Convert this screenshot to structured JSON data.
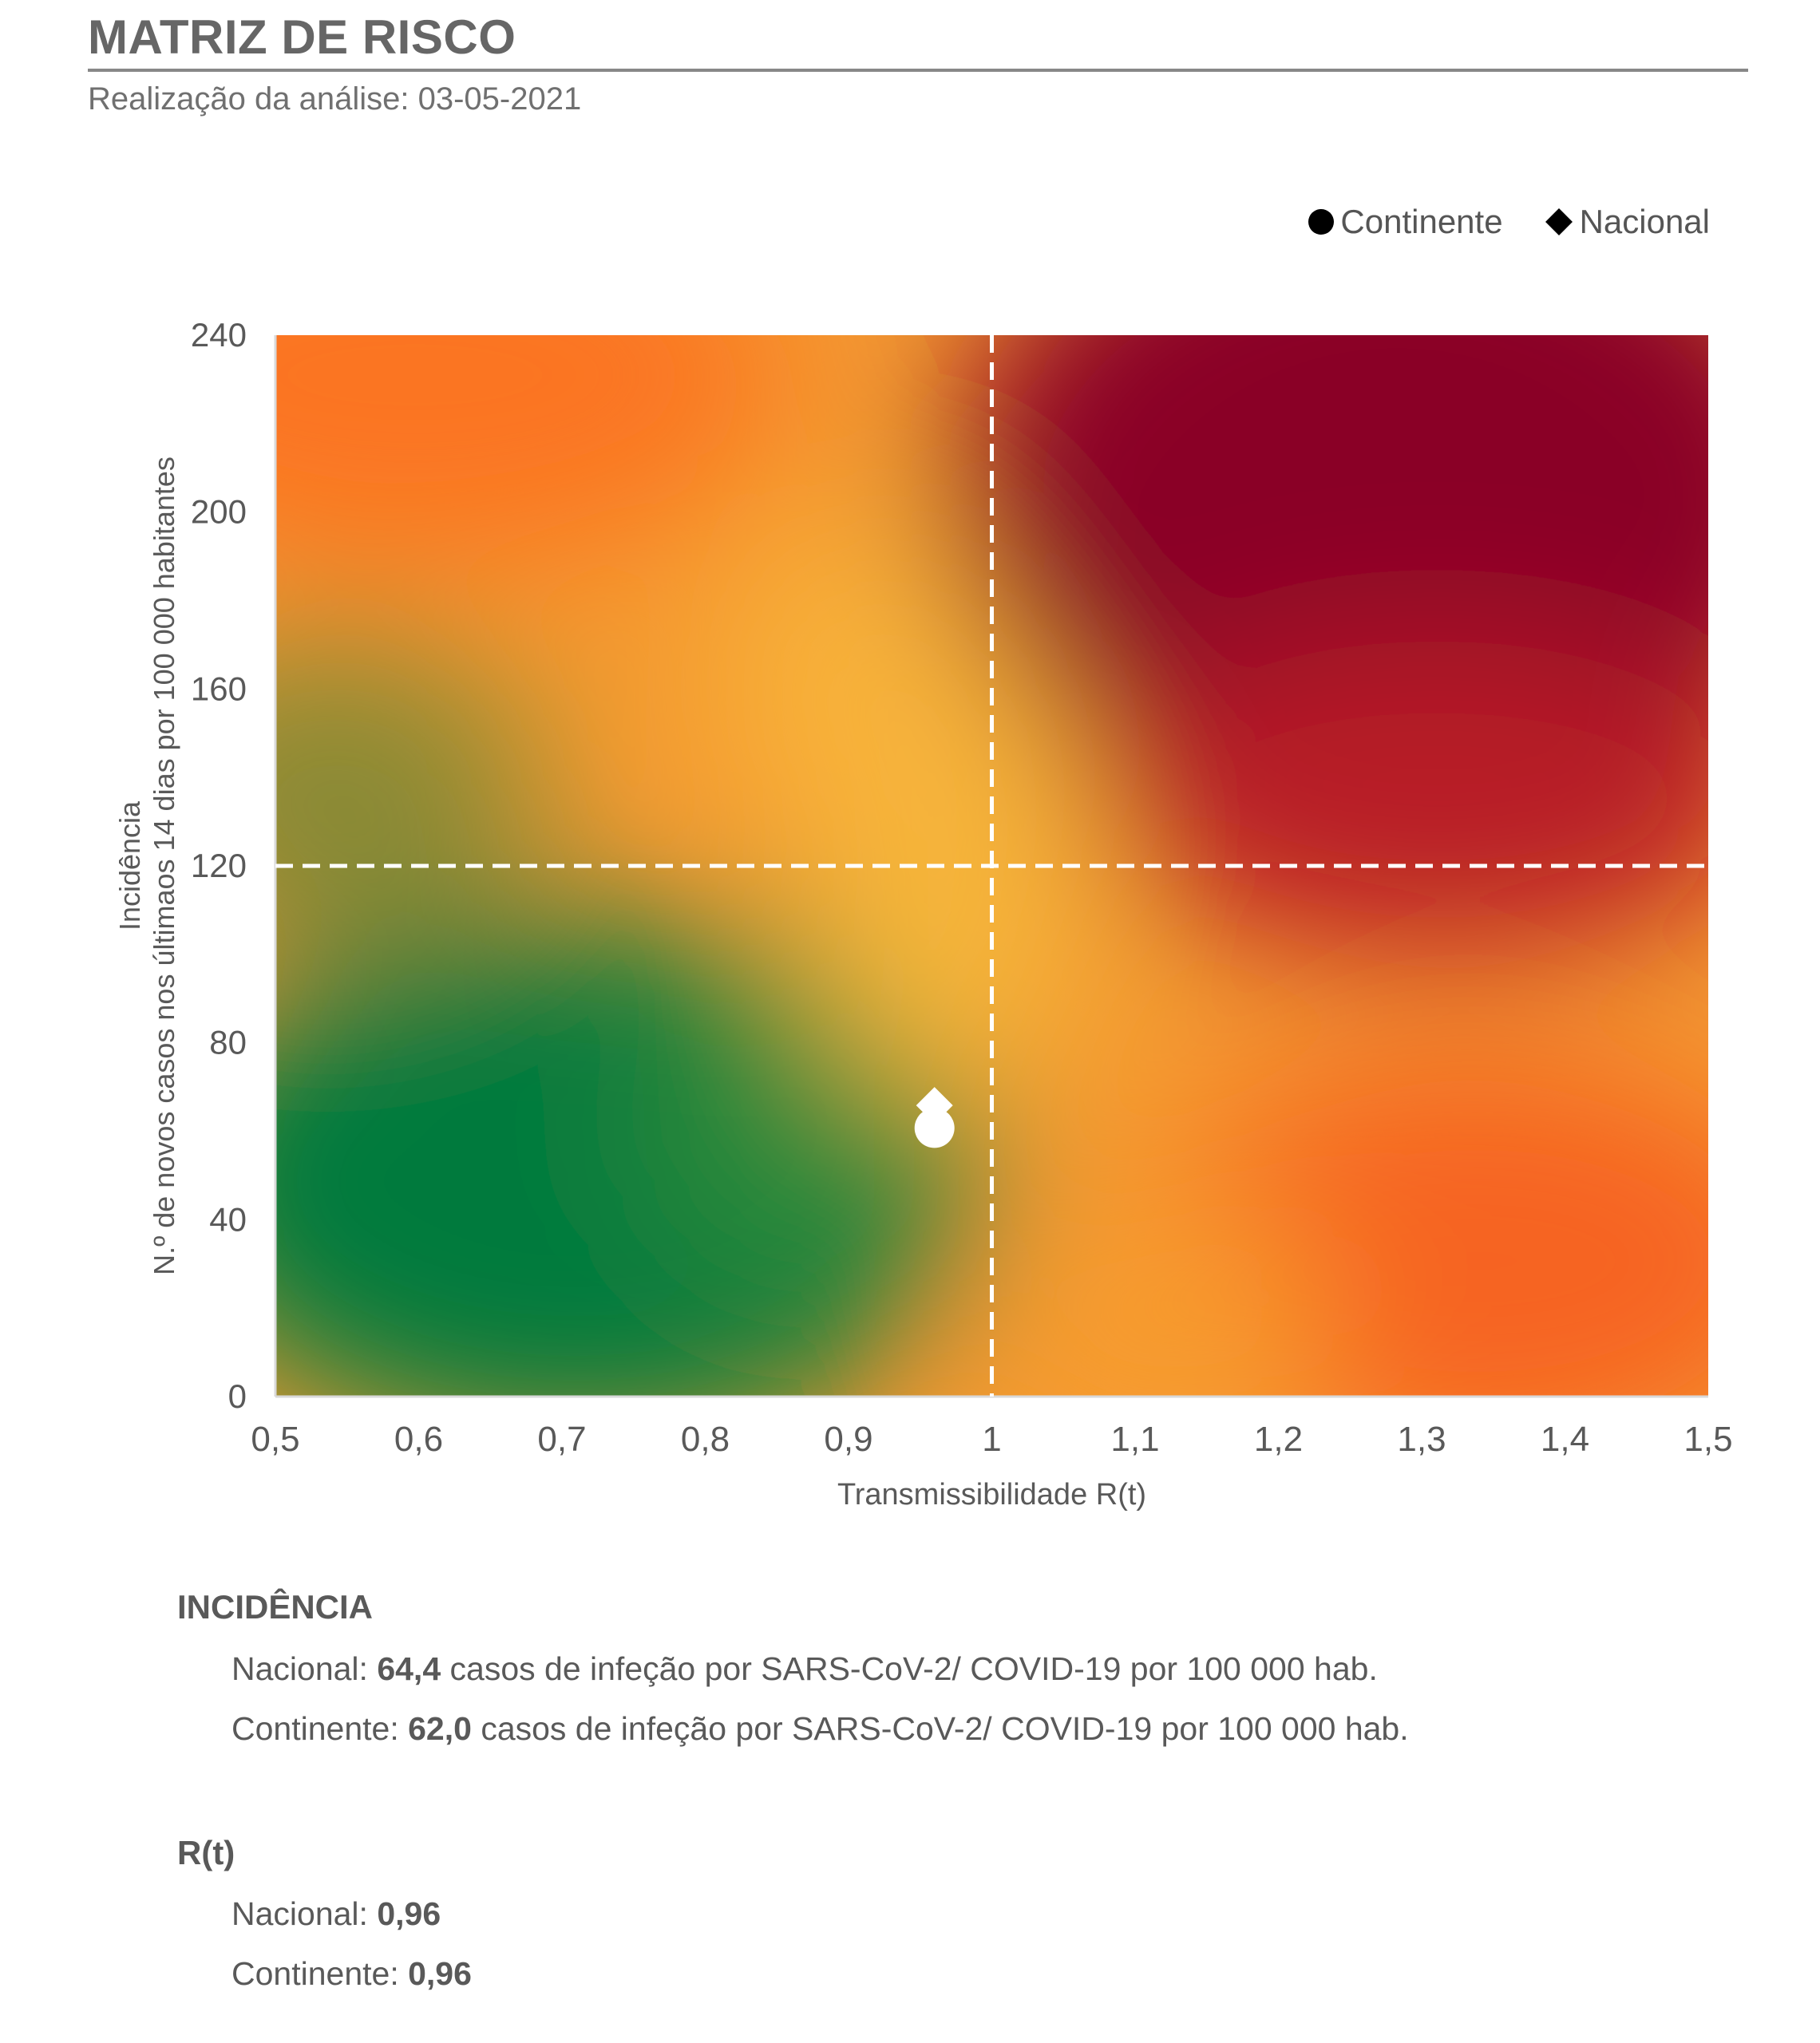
{
  "header": {
    "title": "MATRIZ DE RISCO",
    "subtitle": "Realização da análise: 03-05-2021"
  },
  "legend": {
    "continente": "Continente",
    "nacional": "Nacional"
  },
  "chart_data": {
    "type": "scatter",
    "xlabel": "Transmissibilidade R(t)",
    "ylabel_line1": "Incidência",
    "ylabel_line2": "N.º de novos casos nos últimaos 14 dias por 100 000 habitantes",
    "xlim": [
      0.5,
      1.5
    ],
    "ylim": [
      0,
      240
    ],
    "x_ticks": [
      0.5,
      0.6,
      0.7,
      0.8,
      0.9,
      1,
      1.1,
      1.2,
      1.3,
      1.4,
      1.5
    ],
    "x_tick_labels": [
      "0,5",
      "0,6",
      "0,7",
      "0,8",
      "0,9",
      "1",
      "1,1",
      "1,2",
      "1,3",
      "1,4",
      "1,5"
    ],
    "y_ticks": [
      0,
      40,
      80,
      120,
      160,
      200,
      240
    ],
    "y_tick_labels": [
      "0",
      "40",
      "80",
      "120",
      "160",
      "200",
      "240"
    ],
    "thresholds": {
      "x": 1,
      "y": 120
    },
    "background": "risk gradient green to red",
    "series": [
      {
        "name": "Continente",
        "marker": "circle",
        "x": 0.96,
        "y": 62.0
      },
      {
        "name": "Nacional",
        "marker": "diamond",
        "x": 0.96,
        "y": 64.4
      }
    ],
    "marker_color": "#ffffff",
    "colors": {
      "green": "#007a3d",
      "yellow": "#f7b538",
      "orange": "#fa7a20",
      "red": "#8a0025"
    }
  },
  "incidencia": {
    "heading": "INCIDÊNCIA",
    "nacional_label": "Nacional: ",
    "nacional_value": "64,4",
    "nacional_suffix": " casos de infeção por SARS-CoV-2/ COVID-19 por 100 000 hab.",
    "continente_label": "Continente: ",
    "continente_value": "62,0",
    "continente_suffix": " casos de infeção por SARS-CoV-2/ COVID-19 por 100 000 hab."
  },
  "rt": {
    "heading": "R(t)",
    "nacional_label": "Nacional: ",
    "nacional_value": "0,96",
    "continente_label": "Continente: ",
    "continente_value": "0,96"
  }
}
